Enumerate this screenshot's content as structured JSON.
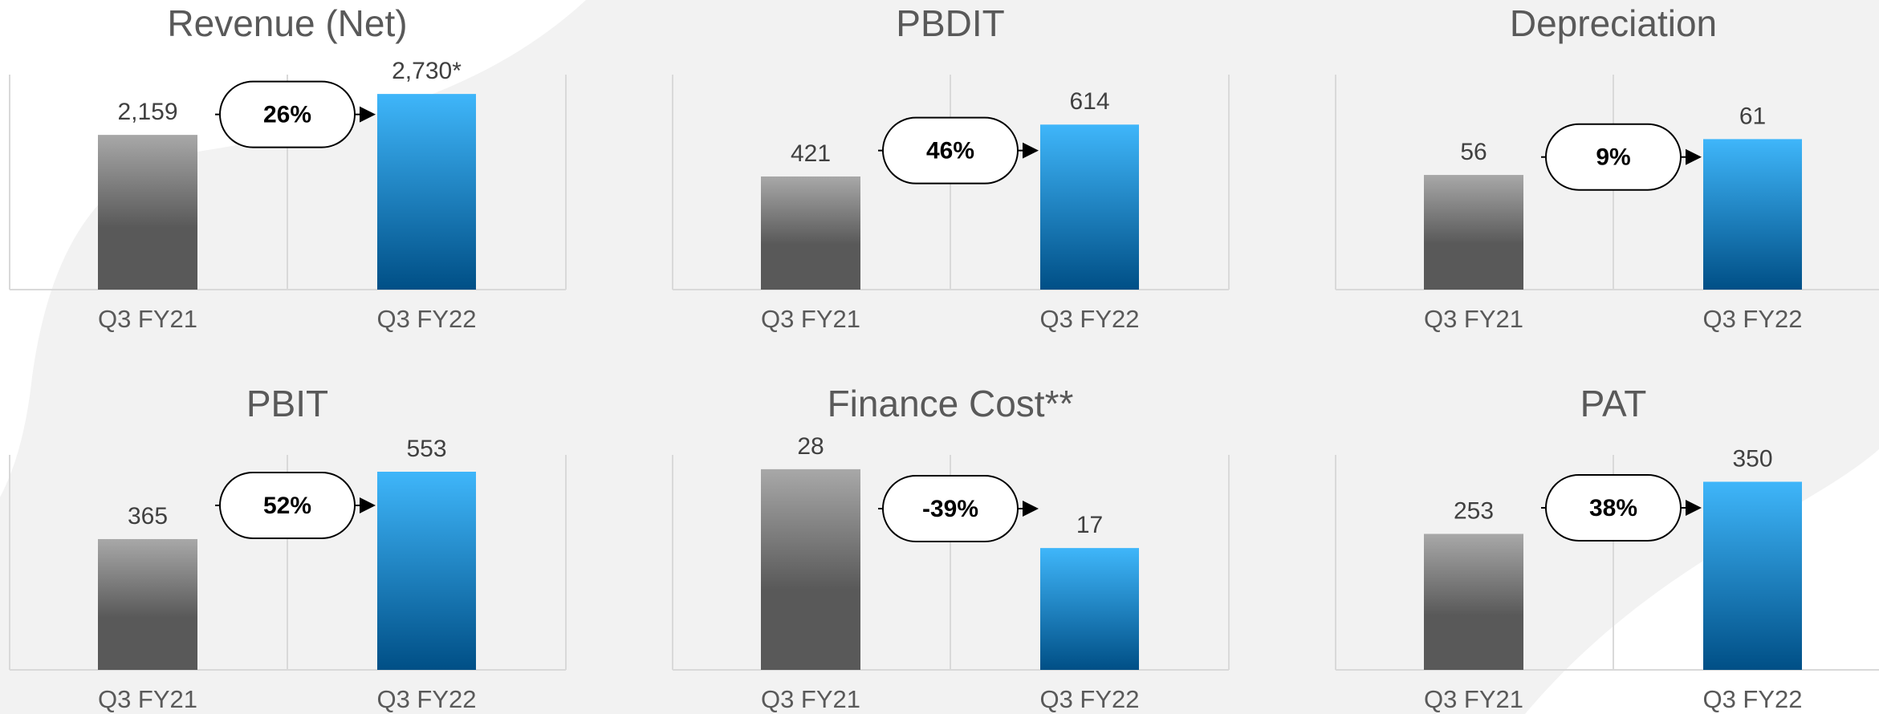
{
  "chart_data": [
    {
      "type": "bar",
      "title": "Revenue (Net)",
      "categories": [
        "Q3 FY21",
        "Q3 FY22"
      ],
      "values": [
        2159,
        2730
      ],
      "value_labels": [
        "2,159",
        "2,730*"
      ],
      "annotation": "26%",
      "ylim": [
        0,
        3000
      ],
      "colors": [
        [
          "#a8a8a8",
          "#595959"
        ],
        [
          "#3fb6fa",
          "#004f86"
        ]
      ]
    },
    {
      "type": "bar",
      "title": "PBDIT",
      "categories": [
        "Q3 FY21",
        "Q3 FY22"
      ],
      "values": [
        421,
        614
      ],
      "annotation": "46%",
      "ylim": [
        0,
        800
      ],
      "colors": [
        [
          "#a8a8a8",
          "#595959"
        ],
        [
          "#3fb6fa",
          "#004f86"
        ]
      ]
    },
    {
      "type": "bar",
      "title": "Depreciation",
      "categories": [
        "Q3 FY21",
        "Q3 FY22"
      ],
      "values": [
        56,
        61
      ],
      "annotation": "9%",
      "ylim": [
        40,
        70
      ],
      "colors": [
        [
          "#a8a8a8",
          "#595959"
        ],
        [
          "#3fb6fa",
          "#004f86"
        ]
      ]
    },
    {
      "type": "bar",
      "title": "PBIT",
      "categories": [
        "Q3 FY21",
        "Q3 FY22"
      ],
      "values": [
        365,
        553
      ],
      "annotation": "52%",
      "ylim": [
        0,
        600
      ],
      "colors": [
        [
          "#a8a8a8",
          "#595959"
        ],
        [
          "#3fb6fa",
          "#004f86"
        ]
      ]
    },
    {
      "type": "bar",
      "title": "Finance Cost**",
      "categories": [
        "Q3 FY21",
        "Q3 FY22"
      ],
      "values": [
        28,
        17
      ],
      "annotation": "-39%",
      "ylim": [
        0,
        30
      ],
      "colors": [
        [
          "#a8a8a8",
          "#595959"
        ],
        [
          "#3fb6fa",
          "#004f86"
        ]
      ]
    },
    {
      "type": "bar",
      "title": "PAT",
      "categories": [
        "Q3 FY21",
        "Q3 FY22"
      ],
      "values": [
        253,
        350
      ],
      "annotation": "38%",
      "ylim": [
        0,
        400
      ],
      "colors": [
        [
          "#a8a8a8",
          "#595959"
        ],
        [
          "#3fb6fa",
          "#004f86"
        ]
      ]
    }
  ]
}
